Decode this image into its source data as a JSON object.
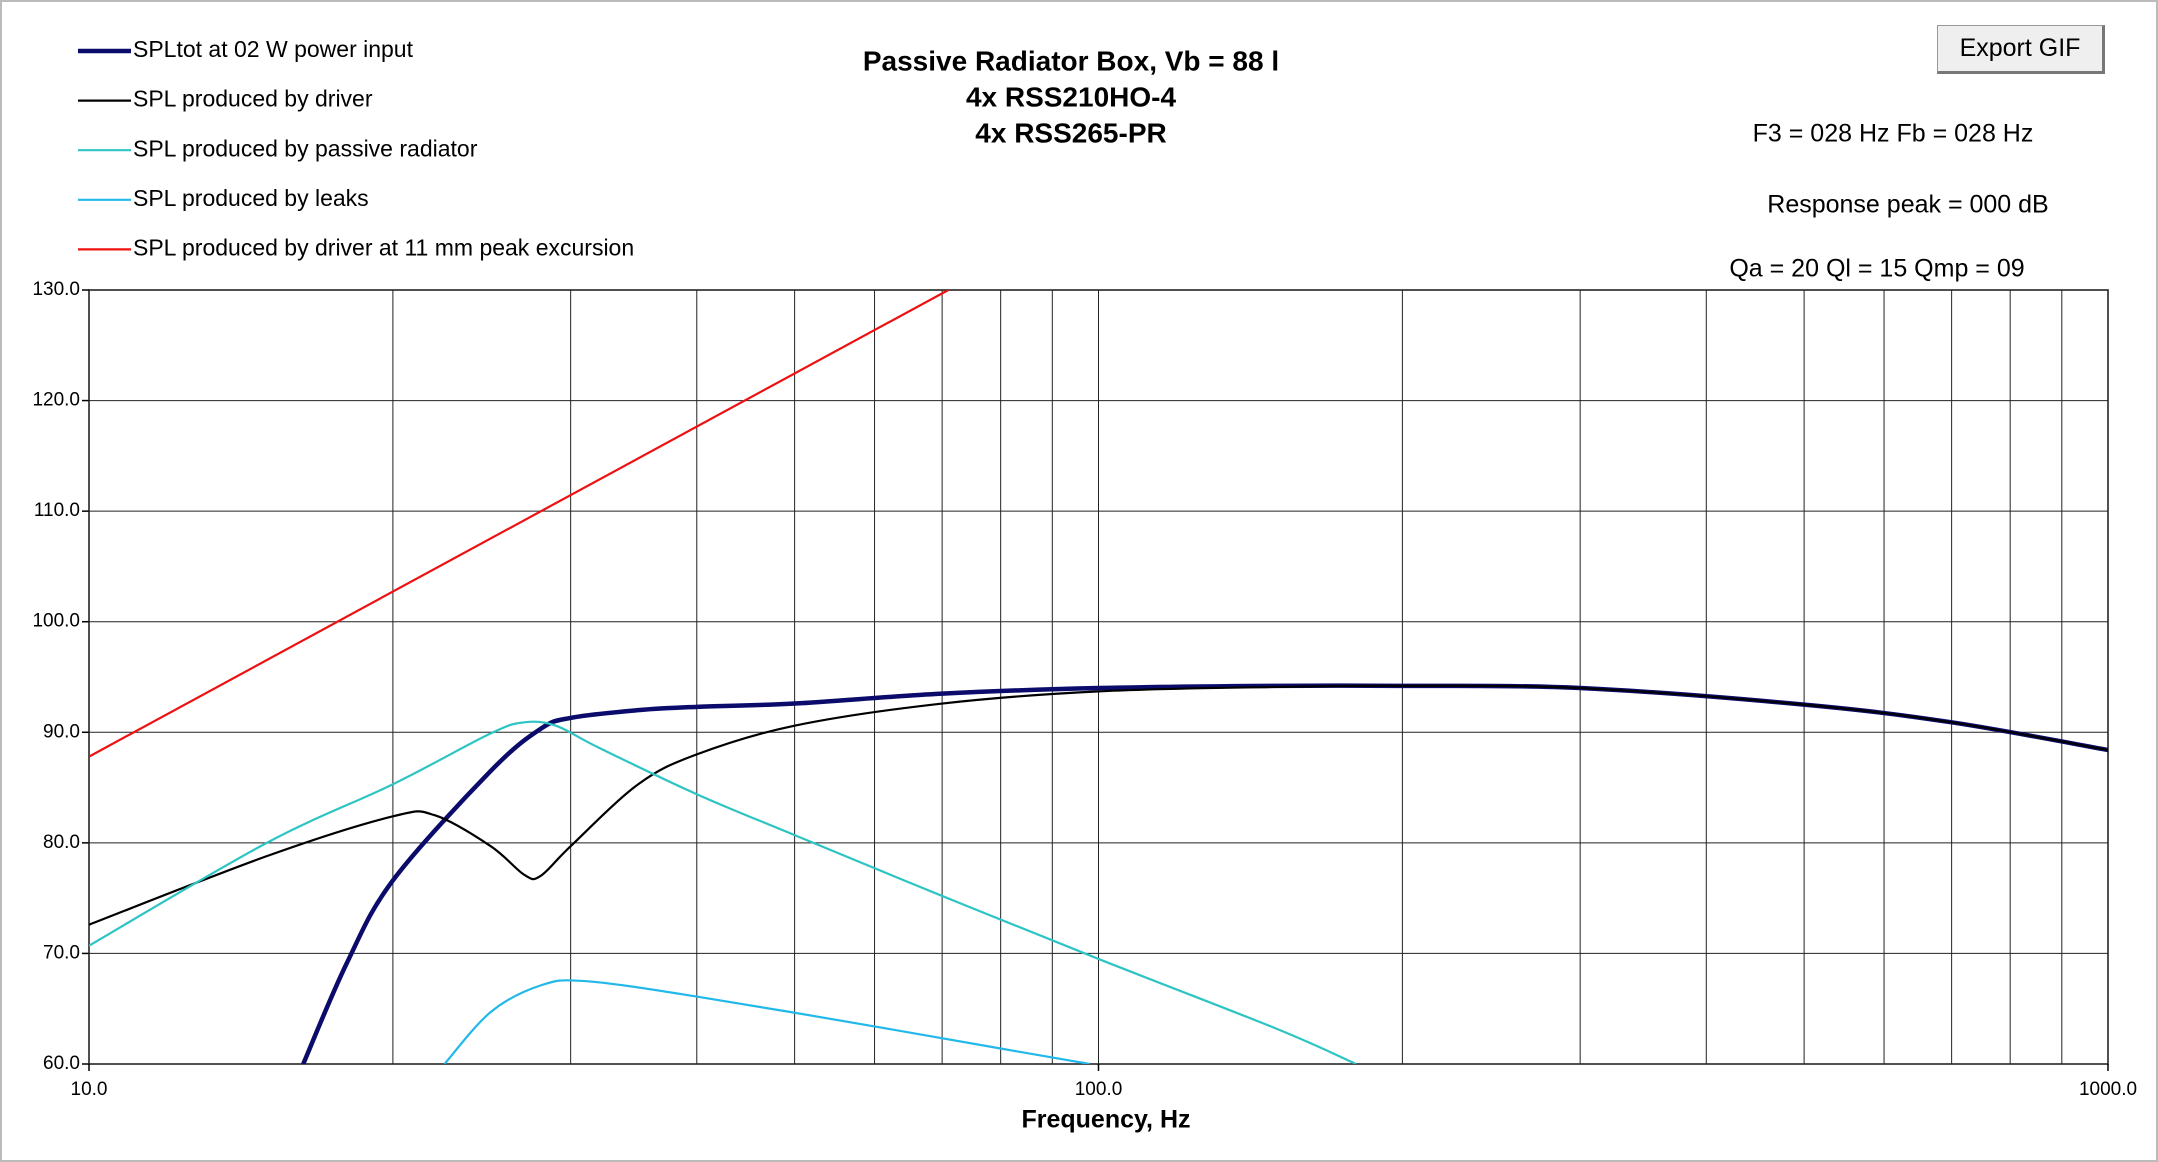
{
  "chart_data": {
    "type": "line",
    "title_lines": [
      "Passive Radiator Box, Vb = 88 l",
      "4x RSS210HO-4",
      "4x RSS265-PR"
    ],
    "annotations": [
      "F3 = 028 Hz  Fb = 028 Hz",
      "Response peak = 000 dB",
      "Qa = 20  Ql = 15  Qmp = 09"
    ],
    "button": "Export GIF",
    "x_label": "Frequency, Hz",
    "log_x": true,
    "grid": true,
    "xlim": [
      10,
      1000
    ],
    "xticks": [
      {
        "value": 10,
        "label": "10.0"
      },
      {
        "value": 100,
        "label": "100.0"
      },
      {
        "value": 1000,
        "label": "1000.0"
      }
    ],
    "ylim": [
      60,
      130
    ],
    "yticks": [
      {
        "value": 60,
        "label": "60.0"
      },
      {
        "value": 70,
        "label": "70.0"
      },
      {
        "value": 80,
        "label": "80.0"
      },
      {
        "value": 90,
        "label": "90.0"
      },
      {
        "value": 100,
        "label": "100.0"
      },
      {
        "value": 110,
        "label": "110.0"
      },
      {
        "value": 120,
        "label": "120.0"
      },
      {
        "value": 130,
        "label": "130.0"
      }
    ],
    "series": [
      {
        "name": "SPLtot at 02 W power input",
        "color": "#0b0b6b",
        "x": [
          16.3,
          18,
          20,
          25,
          28,
          30,
          35,
          40,
          50,
          70,
          100,
          150,
          200,
          300,
          500,
          700,
          1000
        ],
        "values": [
          60,
          69.1,
          76.6,
          86.5,
          90.3,
          91.3,
          92.0,
          92.3,
          92.6,
          93.5,
          94.0,
          94.2,
          94.2,
          94.0,
          92.5,
          90.9,
          88.4
        ]
      },
      {
        "name": "SPL produced by driver",
        "color": "#000000",
        "x": [
          10,
          15,
          20,
          22,
          25,
          27,
          28,
          30,
          35,
          40,
          50,
          70,
          100,
          150,
          200,
          300,
          500,
          700,
          1000
        ],
        "values": [
          72.6,
          78.8,
          82.4,
          82.5,
          79.7,
          77.1,
          77.0,
          79.7,
          85.3,
          88.0,
          90.6,
          92.6,
          93.7,
          94.1,
          94.2,
          94.0,
          92.5,
          90.9,
          88.4
        ]
      },
      {
        "name": "SPL produced by passive radiator",
        "color": "#2ec4c4",
        "x": [
          10,
          15,
          20,
          25,
          27,
          29,
          32,
          40,
          50,
          70,
          100,
          150,
          180
        ],
        "values": [
          70.7,
          80.0,
          85.3,
          89.9,
          90.9,
          90.6,
          88.6,
          84.4,
          80.7,
          75.2,
          69.5,
          63.2,
          60
        ]
      },
      {
        "name": "SPL produced by leaks",
        "color": "#22b8ea",
        "x": [
          22.5,
          25,
          28,
          31,
          40,
          60,
          80,
          98
        ],
        "values": [
          60,
          64.7,
          67.1,
          67.5,
          66.1,
          63.4,
          61.4,
          60
        ]
      },
      {
        "name": "SPL produced by driver at 11 mm peak excursion",
        "color": "#ee1111",
        "x": [
          10,
          71
        ],
        "values": [
          87.8,
          130
        ]
      }
    ]
  }
}
